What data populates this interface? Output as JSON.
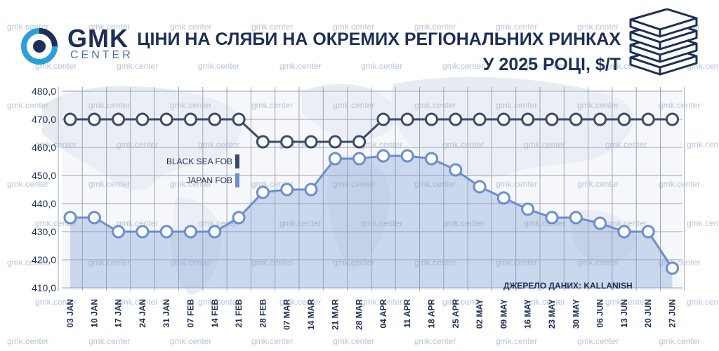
{
  "header": {
    "logo_text": "GMK",
    "logo_subtext": "CENTER",
    "title_line1": "ЦІНИ НА СЛЯБИ НА ОКРЕМИХ РЕГІОНАЛЬНИХ РИНКАХ",
    "title_line2": "У 2025 РОЦІ, $/Т"
  },
  "watermark": "gmk.center",
  "source": "ДЖЕРЕЛО ДАНИХ: KALLANISH",
  "legend": {
    "black_sea": "BLACK SEA FOB",
    "japan": "JAPAN FOB"
  },
  "colors": {
    "title": "#1e2f55",
    "black_sea": "#3b4a6b",
    "japan": "#6a8fcf",
    "logo_accent": "#2aa0d8"
  },
  "chart_data": {
    "type": "line",
    "categories": [
      "03 JAN",
      "10 JAN",
      "17 JAN",
      "24 JAN",
      "31 JAN",
      "07 FEB",
      "14 FEB",
      "21 FEB",
      "28 FEB",
      "07 MAR",
      "14 MAR",
      "21 MAR",
      "28 MAR",
      "04 APR",
      "11 APR",
      "18 APR",
      "25 APR",
      "02 MAY",
      "09 MAY",
      "16 MAY",
      "23 MAY",
      "30 MAY",
      "06 JUN",
      "13 JUN",
      "20 JUN",
      "27 JUN"
    ],
    "series": [
      {
        "name": "BLACK SEA FOB",
        "values": [
          470,
          470,
          470,
          470,
          470,
          470,
          470,
          470,
          462,
          462,
          462,
          462,
          462,
          470,
          470,
          470,
          470,
          470,
          470,
          470,
          470,
          470,
          470,
          470,
          470,
          470
        ]
      },
      {
        "name": "JAPAN FOB",
        "values": [
          435,
          435,
          430,
          430,
          430,
          430,
          430,
          435,
          444,
          445,
          445,
          456,
          456,
          457,
          457,
          456,
          452,
          446,
          442,
          438,
          435,
          435,
          433,
          430,
          430,
          417
        ]
      }
    ],
    "yticks": [
      "480,0",
      "470,0",
      "460,0",
      "450,0",
      "440,0",
      "430,0",
      "420,0",
      "410,0"
    ],
    "ylim": [
      410,
      480
    ],
    "grid": true
  }
}
